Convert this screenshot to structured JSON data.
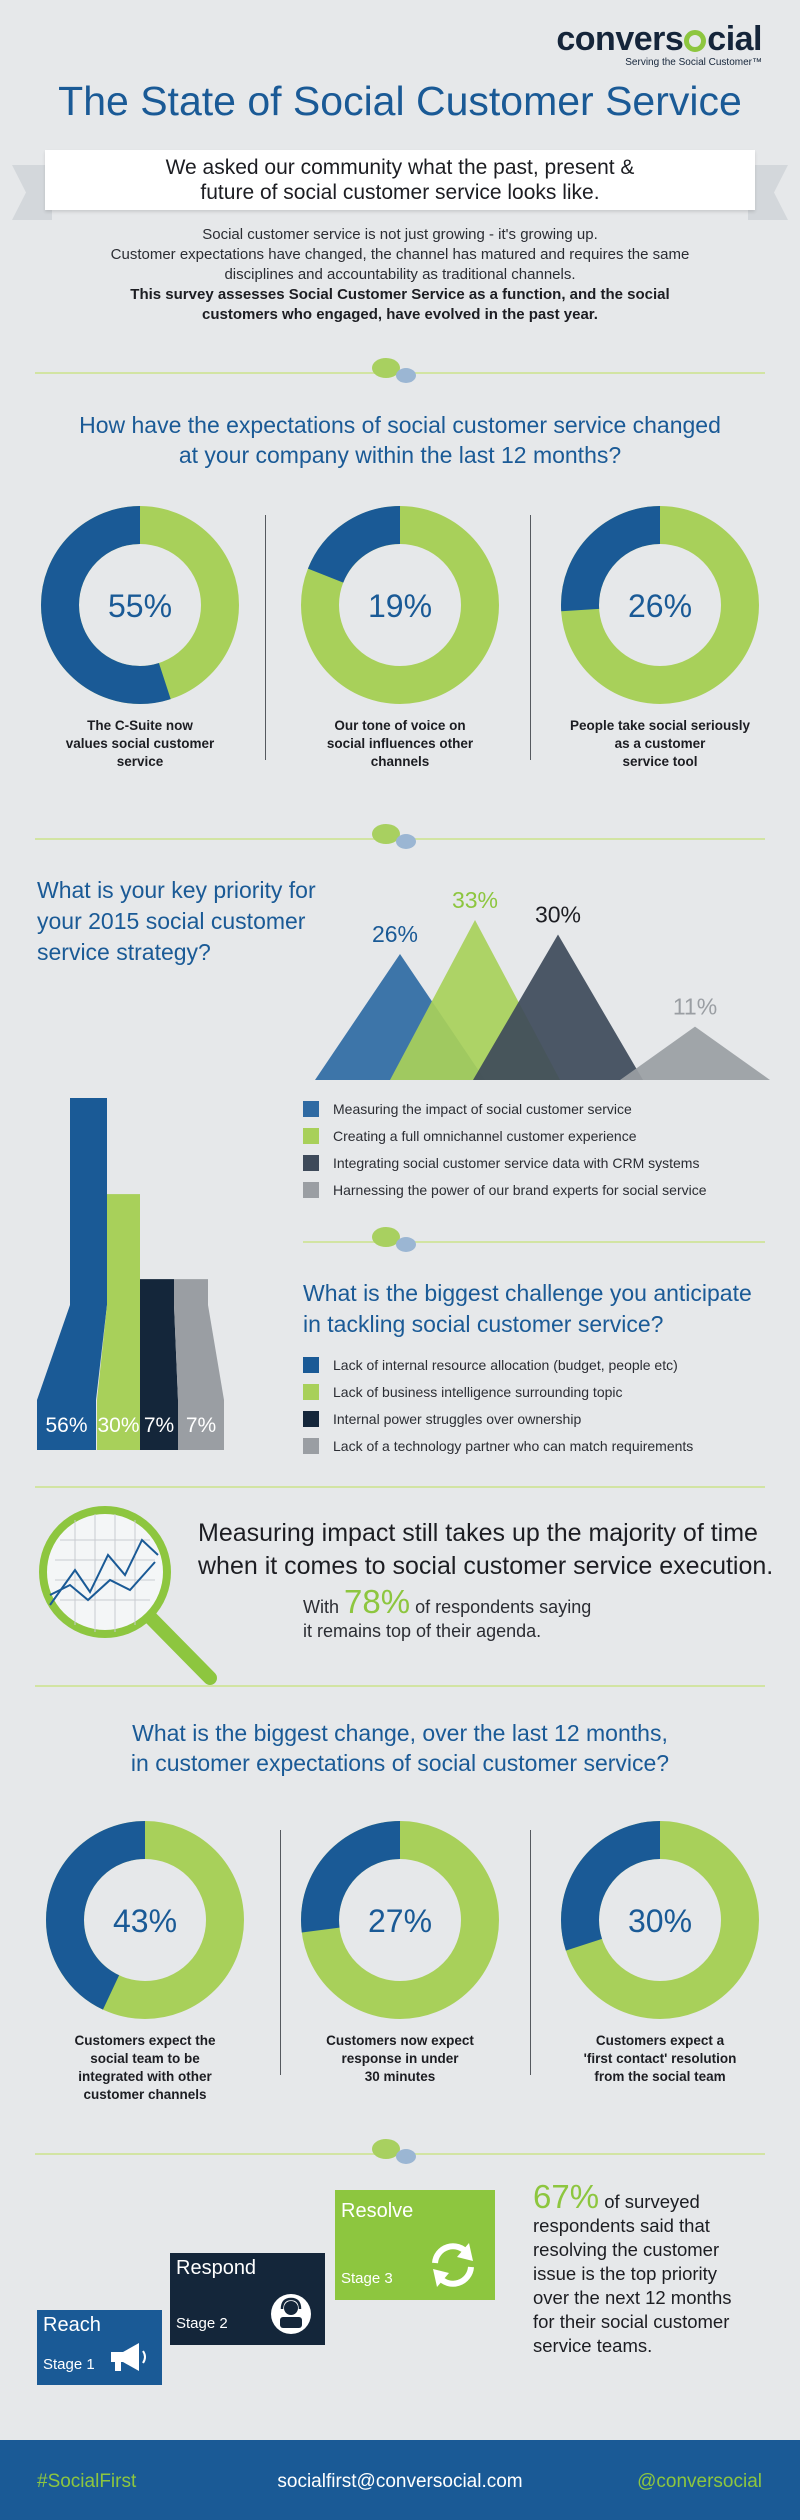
{
  "brand": {
    "logo_text_pre": "convers",
    "logo_text_post": "cial",
    "tagline": "Serving the Social Customer™"
  },
  "title": "The State of Social Customer Service",
  "banner": {
    "line1": "We asked our community what the past, present &",
    "line2": "future of social customer service looks like."
  },
  "intro": {
    "line1": "Social customer service is not just growing - it's growing up.",
    "line2": "Customer expectations have changed, the channel has matured and requires the same",
    "line3": "disciplines and accountability as traditional channels.",
    "line4": "This survey assesses Social Customer Service as a function, and the social",
    "line5": "customers who engaged, have evolved in the past year."
  },
  "colors": {
    "blue": "#1a5a96",
    "lime": "#a8d05a",
    "dark": "#3e4a5a",
    "grey": "#9a9ea3",
    "navy": "#14263a"
  },
  "q1": {
    "title_line1": "How have the expectations of social customer service changed",
    "title_line2": "at your company within the last 12 months?"
  },
  "q3": {
    "title_line1": "What is the biggest change, over the last 12 months,",
    "title_line2": "in customer expectations of social customer service?"
  },
  "insight": {
    "main_line1": "Measuring impact still takes up the majority of time",
    "main_line2": "when it comes to social customer service execution.",
    "sub_pre": "With",
    "sub_value": "78%",
    "sub_post": "of respondents saying",
    "sub_line2": "it remains top of their agenda."
  },
  "stages": {
    "reach": "Reach",
    "reach_num": "Stage 1",
    "respond": "Respond",
    "respond_num": "Stage 2",
    "resolve": "Resolve",
    "resolve_num": "Stage 3"
  },
  "resolve_stat": {
    "value": "67%",
    "text1": "of surveyed",
    "text2": "respondents said that",
    "text3": "resolving the customer",
    "text4": "issue is the top priority",
    "text5": "over the next 12 months",
    "text6": "for their social customer",
    "text7": "service teams."
  },
  "footer": {
    "hashtag": "#SocialFirst",
    "email": "socialfirst@conversocial.com",
    "handle": "@conversocial"
  },
  "chart_data": [
    {
      "type": "pie",
      "variant": "donut",
      "title": "How have the expectations of social customer service changed at your company within the last 12 months?",
      "items": [
        {
          "value": 55,
          "display": "55%",
          "label_lines": [
            "The C-Suite now",
            "values social customer",
            "service"
          ]
        },
        {
          "value": 19,
          "display": "19%",
          "label_lines": [
            "Our tone of voice on",
            "social influences other",
            "channels"
          ]
        },
        {
          "value": 26,
          "display": "26%",
          "label_lines": [
            "People take social seriously",
            "as a customer",
            "service tool"
          ]
        }
      ]
    },
    {
      "type": "area",
      "variant": "triangles",
      "title_lines": [
        "What is your key priority for",
        "your 2015 social customer",
        "service strategy?"
      ],
      "series": [
        {
          "name": "Measuring the impact of social customer service",
          "value": 26,
          "display": "26%",
          "color": "#2f6aa3"
        },
        {
          "name": "Creating a full omnichannel customer experience",
          "value": 33,
          "display": "33%",
          "color": "#a8d05a"
        },
        {
          "name": "Integrating social customer service data with CRM systems",
          "value": 30,
          "display": "30%",
          "color": "#3e4a5a"
        },
        {
          "name": "Harnessing the power of our brand experts for social service",
          "value": 11,
          "display": "11%",
          "color": "#9a9ea3"
        }
      ]
    },
    {
      "type": "bar",
      "title_lines": [
        "What is the biggest challenge you anticipate",
        "in tackling social customer service?"
      ],
      "series": [
        {
          "name": "Lack of internal resource allocation (budget, people etc)",
          "value": 56,
          "display": "56%",
          "color": "#1a5a96"
        },
        {
          "name": "Lack of business intelligence surrounding topic",
          "value": 30,
          "display": "30%",
          "color": "#a8d05a"
        },
        {
          "name": "Internal power struggles over ownership",
          "value": 7,
          "display": "7%",
          "color": "#14263a"
        },
        {
          "name": "Lack of a technology partner who can match requirements",
          "value": 7,
          "display": "7%",
          "color": "#9a9ea3"
        }
      ]
    },
    {
      "type": "pie",
      "variant": "donut",
      "title": "What is the biggest change, over the last 12 months, in customer expectations of social customer service?",
      "items": [
        {
          "value": 43,
          "display": "43%",
          "label_lines": [
            "Customers expect the",
            "social team to be",
            "integrated with other",
            "customer channels"
          ]
        },
        {
          "value": 27,
          "display": "27%",
          "label_lines": [
            "Customers now expect",
            "response in under",
            "30 minutes"
          ]
        },
        {
          "value": 30,
          "display": "30%",
          "label_lines": [
            "Customers expect a",
            "'first contact' resolution",
            "from the social team"
          ]
        }
      ]
    }
  ]
}
